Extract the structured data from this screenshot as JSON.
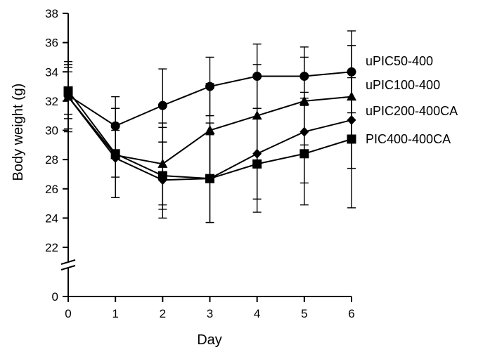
{
  "chart_data": {
    "type": "line",
    "xlabel": "Day",
    "ylabel": "Body weight (g)",
    "x": [
      0,
      1,
      2,
      3,
      4,
      5,
      6
    ],
    "xlim": [
      0,
      6
    ],
    "ylim": [
      22,
      38
    ],
    "y_ticks": [
      0,
      22,
      24,
      26,
      28,
      30,
      32,
      34,
      36,
      38
    ],
    "y_axis_break": true,
    "grid": false,
    "legend": "right, labels beside line ends",
    "series": [
      {
        "name": "uPIC50-400",
        "marker": "circle",
        "values": [
          32.4,
          30.3,
          31.7,
          33.0,
          33.7,
          33.7,
          34.0
        ],
        "err_upper": [
          34.0,
          32.3,
          34.2,
          35.0,
          35.9,
          35.7,
          36.8
        ],
        "err_lower": [
          30.8,
          28.3,
          29.2,
          31.0,
          31.5,
          31.7,
          31.2
        ]
      },
      {
        "name": "uPIC100-400",
        "marker": "triangle",
        "values": [
          32.3,
          28.3,
          27.7,
          30.0,
          31.0,
          32.0,
          32.3
        ],
        "err_upper": [
          34.5,
          31.5,
          30.5,
          33.2,
          34.5,
          35.0,
          35.8
        ],
        "err_lower": [
          30.1,
          25.4,
          24.9,
          26.8,
          27.5,
          29.0,
          29.2
        ]
      },
      {
        "name": "uPIC200-400CA",
        "marker": "diamond",
        "values": [
          32.3,
          28.1,
          26.6,
          26.7,
          28.4,
          29.9,
          30.7
        ],
        "err_upper": [
          34.7,
          31.5,
          30.2,
          30.5,
          31.5,
          32.6,
          33.6
        ],
        "err_lower": [
          29.9,
          25.4,
          24.0,
          23.7,
          25.3,
          26.4,
          27.4
        ]
      },
      {
        "name": "PIC400-400CA",
        "marker": "square",
        "values": [
          32.7,
          28.4,
          26.9,
          26.7,
          27.7,
          28.4,
          29.4
        ],
        "err_upper": [
          34.3,
          30.0,
          29.2,
          29.7,
          30.8,
          32.2,
          34.1
        ],
        "err_lower": [
          31.1,
          26.8,
          24.6,
          23.7,
          24.4,
          24.9,
          24.7
        ]
      }
    ]
  }
}
